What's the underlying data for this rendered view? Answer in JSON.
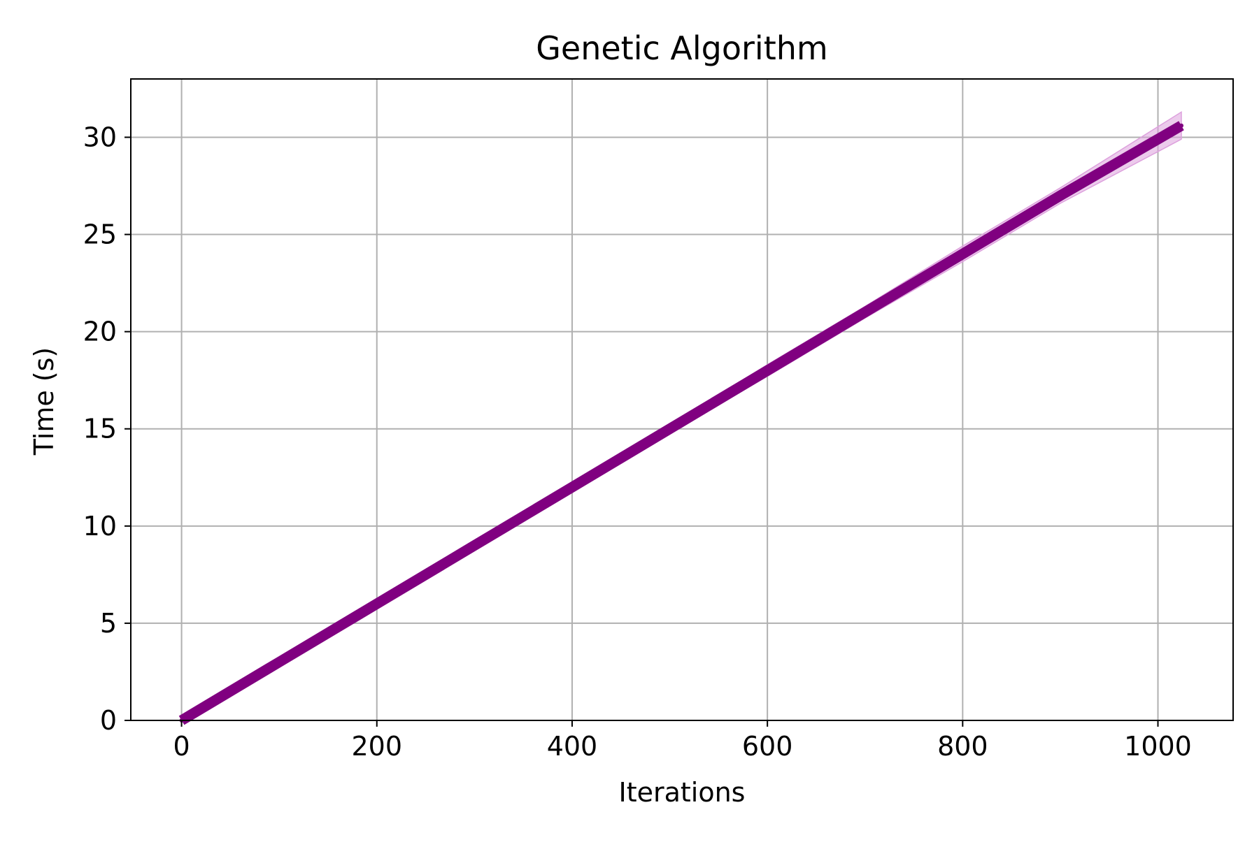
{
  "chart_data": {
    "type": "line",
    "title": "Genetic Algorithm",
    "xlabel": "Iterations",
    "ylabel": "Time (s)",
    "xlim": [
      -52,
      1077
    ],
    "ylim": [
      0,
      33
    ],
    "xticks": [
      0,
      200,
      400,
      600,
      800,
      1000
    ],
    "yticks": [
      0,
      5,
      10,
      15,
      20,
      25,
      30
    ],
    "grid": true,
    "legend": "none",
    "series": [
      {
        "color": "#800080",
        "band_color": "#dda0dd",
        "x": [
          0,
          100,
          200,
          300,
          400,
          500,
          600,
          700,
          800,
          900,
          1024
        ],
        "y": [
          0.0,
          3.0,
          6.0,
          9.0,
          12.0,
          15.0,
          18.0,
          21.0,
          24.0,
          27.0,
          30.6
        ],
        "upper": [
          0.2,
          3.1,
          6.1,
          9.1,
          12.2,
          15.2,
          18.3,
          21.3,
          24.4,
          27.4,
          31.3
        ],
        "lower": [
          0.0,
          2.9,
          5.9,
          8.9,
          11.8,
          14.8,
          17.7,
          20.7,
          23.6,
          26.6,
          29.9
        ]
      }
    ]
  }
}
